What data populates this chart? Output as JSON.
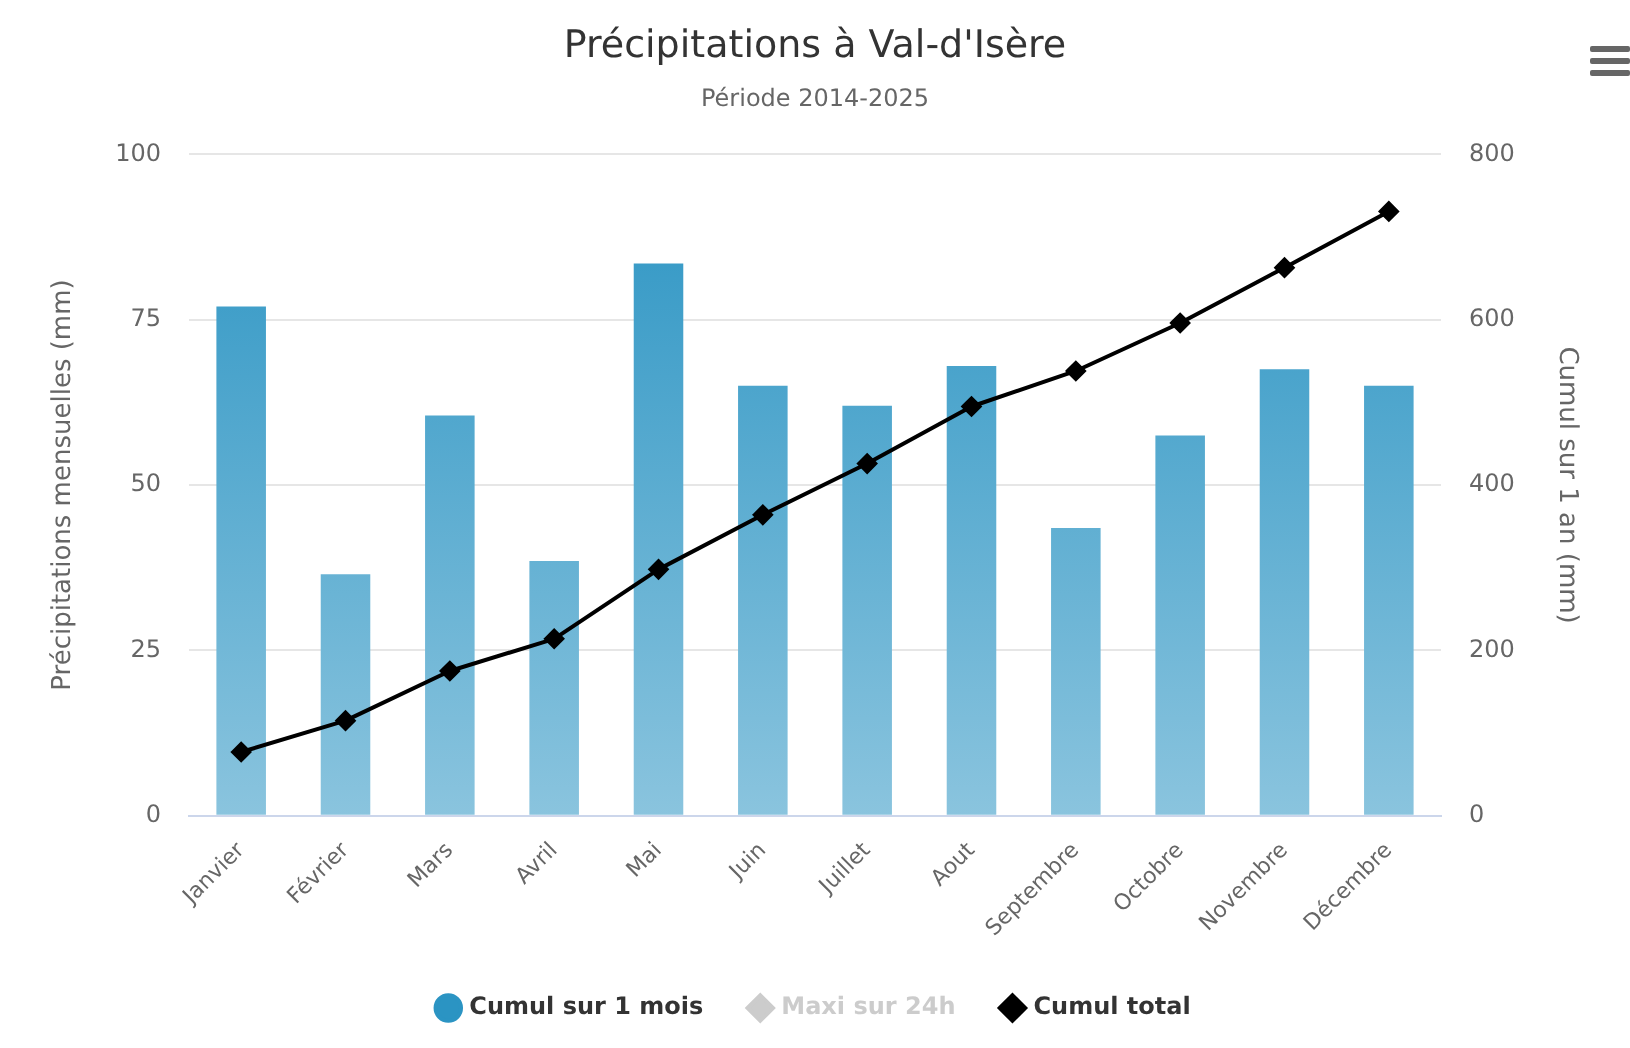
{
  "chart_data": {
    "type": "bar",
    "title": "Précipitations à Val-d'Isère",
    "subtitle": "Période 2014-2025",
    "ylabel": "Précipitations mensuelles (mm)",
    "y2label": "Cumul sur 1 an (mm)",
    "categories": [
      "Janvier",
      "Février",
      "Mars",
      "Avril",
      "Mai",
      "Juin",
      "Juillet",
      "Aout",
      "Septembre",
      "Octobre",
      "Novembre",
      "Décembre"
    ],
    "series": [
      {
        "name": "Cumul sur 1 mois",
        "color": "#2b94c3",
        "values": [
          77,
          36.5,
          60.5,
          38.5,
          83.5,
          65,
          62,
          68,
          43.5,
          57.5,
          67.5,
          65
        ]
      },
      {
        "name": "Maxi sur 24h",
        "type": "line",
        "color": "#cccccc",
        "values": [
          null,
          null,
          null,
          null,
          null,
          null,
          null,
          null,
          null,
          null,
          null,
          null
        ]
      },
      {
        "name": "Cumul total",
        "type": "line",
        "axis": "y2",
        "color": "#000000",
        "values": [
          77,
          115,
          175,
          214,
          298,
          364,
          426,
          495,
          538,
          596,
          663,
          731
        ]
      }
    ],
    "ylim": [
      0,
      100
    ],
    "yticks": [
      0,
      25,
      50,
      75,
      100
    ],
    "y2lim": [
      0,
      800
    ],
    "y2ticks": [
      0,
      200,
      400,
      600,
      800
    ],
    "grid": "y",
    "legend": "bottom",
    "marker": "diamond"
  }
}
